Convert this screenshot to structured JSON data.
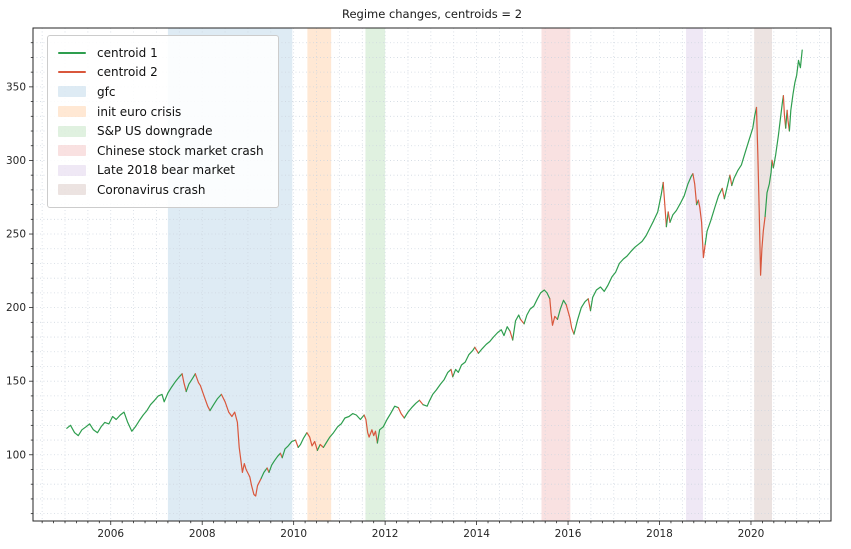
{
  "title": "Regime changes, centroids = 2",
  "chart_data": {
    "type": "line",
    "title": "Regime changes, centroids = 2",
    "xlabel": "",
    "ylabel": "",
    "xlim": [
      2004.3,
      2021.75
    ],
    "ylim": [
      55,
      390
    ],
    "xticks": [
      2006,
      2008,
      2010,
      2012,
      2014,
      2016,
      2018,
      2020
    ],
    "yticks": [
      100,
      150,
      200,
      250,
      300,
      350
    ],
    "x_minor_step": 0.25,
    "y_minor_step": 10,
    "grid": {
      "x_step": 0.5,
      "y_step": 10,
      "style": "dotted",
      "color": "#ccd4de"
    },
    "legend_position": "upper left",
    "series_meta": [
      {
        "name": "centroid 1",
        "regime": 1,
        "color": "#2e9e4e"
      },
      {
        "name": "centroid 2",
        "regime": 2,
        "color": "#d9573c"
      }
    ],
    "bands": [
      {
        "label": "gfc",
        "from": 2007.25,
        "to": 2009.97,
        "color": "rgba(31,119,180,0.15)"
      },
      {
        "label": "init euro crisis",
        "from": 2010.3,
        "to": 2010.82,
        "color": "rgba(255,127,14,0.18)"
      },
      {
        "label": "S&P US downgrade",
        "from": 2011.57,
        "to": 2012.0,
        "color": "rgba(44,160,44,0.15)"
      },
      {
        "label": "Chinese stock market crash",
        "from": 2015.42,
        "to": 2016.05,
        "color": "rgba(214,39,40,0.14)"
      },
      {
        "label": "Late 2018 bear market",
        "from": 2018.58,
        "to": 2018.95,
        "color": "rgba(148,103,189,0.15)"
      },
      {
        "label": "Coronavirus crash",
        "from": 2020.07,
        "to": 2020.46,
        "color": "rgba(140,86,75,0.17)"
      }
    ],
    "points": [
      [
        2005.04,
        118,
        1
      ],
      [
        2005.12,
        120,
        1
      ],
      [
        2005.21,
        115,
        1
      ],
      [
        2005.29,
        113,
        1
      ],
      [
        2005.37,
        117,
        1
      ],
      [
        2005.46,
        119,
        1
      ],
      [
        2005.54,
        121,
        1
      ],
      [
        2005.62,
        117,
        1
      ],
      [
        2005.71,
        115,
        1
      ],
      [
        2005.79,
        119,
        1
      ],
      [
        2005.87,
        122,
        1
      ],
      [
        2005.96,
        121,
        1
      ],
      [
        2006.04,
        126,
        1
      ],
      [
        2006.12,
        124,
        1
      ],
      [
        2006.21,
        127,
        1
      ],
      [
        2006.29,
        129,
        1
      ],
      [
        2006.37,
        122,
        1
      ],
      [
        2006.46,
        116,
        1
      ],
      [
        2006.54,
        119,
        1
      ],
      [
        2006.62,
        123,
        1
      ],
      [
        2006.71,
        127,
        1
      ],
      [
        2006.79,
        130,
        1
      ],
      [
        2006.87,
        134,
        1
      ],
      [
        2006.96,
        137,
        1
      ],
      [
        2007.04,
        140,
        1
      ],
      [
        2007.12,
        141,
        1
      ],
      [
        2007.17,
        136,
        1
      ],
      [
        2007.25,
        142,
        1
      ],
      [
        2007.33,
        146,
        1
      ],
      [
        2007.42,
        150,
        1
      ],
      [
        2007.5,
        153,
        1
      ],
      [
        2007.56,
        155,
        1
      ],
      [
        2007.6,
        149,
        2
      ],
      [
        2007.65,
        143,
        2
      ],
      [
        2007.71,
        148,
        1
      ],
      [
        2007.79,
        152,
        1
      ],
      [
        2007.85,
        155,
        1
      ],
      [
        2007.92,
        149,
        2
      ],
      [
        2007.96,
        147,
        2
      ],
      [
        2008.04,
        140,
        2
      ],
      [
        2008.12,
        133,
        2
      ],
      [
        2008.17,
        130,
        2
      ],
      [
        2008.25,
        134,
        1
      ],
      [
        2008.33,
        138,
        1
      ],
      [
        2008.42,
        141,
        1
      ],
      [
        2008.5,
        136,
        2
      ],
      [
        2008.58,
        129,
        2
      ],
      [
        2008.65,
        126,
        2
      ],
      [
        2008.71,
        129,
        2
      ],
      [
        2008.77,
        122,
        2
      ],
      [
        2008.81,
        105,
        2
      ],
      [
        2008.85,
        95,
        2
      ],
      [
        2008.88,
        88,
        2
      ],
      [
        2008.92,
        94,
        2
      ],
      [
        2008.96,
        90,
        2
      ],
      [
        2009.04,
        85,
        2
      ],
      [
        2009.08,
        79,
        2
      ],
      [
        2009.13,
        73,
        2
      ],
      [
        2009.17,
        72,
        2
      ],
      [
        2009.21,
        79,
        2
      ],
      [
        2009.29,
        84,
        2
      ],
      [
        2009.35,
        88,
        1
      ],
      [
        2009.42,
        91,
        1
      ],
      [
        2009.46,
        88,
        2
      ],
      [
        2009.52,
        93,
        1
      ],
      [
        2009.58,
        96,
        1
      ],
      [
        2009.65,
        99,
        1
      ],
      [
        2009.71,
        101,
        1
      ],
      [
        2009.75,
        98,
        2
      ],
      [
        2009.81,
        104,
        1
      ],
      [
        2009.88,
        106,
        1
      ],
      [
        2009.96,
        109,
        1
      ],
      [
        2010.04,
        110,
        1
      ],
      [
        2010.1,
        105,
        2
      ],
      [
        2010.15,
        107,
        1
      ],
      [
        2010.21,
        111,
        1
      ],
      [
        2010.29,
        115,
        1
      ],
      [
        2010.35,
        112,
        2
      ],
      [
        2010.4,
        106,
        2
      ],
      [
        2010.46,
        109,
        2
      ],
      [
        2010.52,
        103,
        2
      ],
      [
        2010.58,
        107,
        1
      ],
      [
        2010.65,
        105,
        2
      ],
      [
        2010.71,
        108,
        1
      ],
      [
        2010.79,
        112,
        1
      ],
      [
        2010.87,
        115,
        1
      ],
      [
        2010.96,
        119,
        1
      ],
      [
        2011.04,
        121,
        1
      ],
      [
        2011.12,
        125,
        1
      ],
      [
        2011.21,
        126,
        1
      ],
      [
        2011.29,
        128,
        1
      ],
      [
        2011.37,
        127,
        1
      ],
      [
        2011.46,
        124,
        1
      ],
      [
        2011.54,
        127,
        1
      ],
      [
        2011.58,
        124,
        2
      ],
      [
        2011.62,
        115,
        2
      ],
      [
        2011.65,
        112,
        2
      ],
      [
        2011.71,
        117,
        2
      ],
      [
        2011.75,
        113,
        2
      ],
      [
        2011.79,
        116,
        2
      ],
      [
        2011.83,
        108,
        2
      ],
      [
        2011.88,
        117,
        1
      ],
      [
        2011.96,
        119,
        1
      ],
      [
        2012.04,
        124,
        1
      ],
      [
        2012.12,
        128,
        1
      ],
      [
        2012.21,
        133,
        1
      ],
      [
        2012.29,
        132,
        1
      ],
      [
        2012.35,
        128,
        2
      ],
      [
        2012.42,
        125,
        2
      ],
      [
        2012.5,
        129,
        1
      ],
      [
        2012.58,
        132,
        1
      ],
      [
        2012.67,
        135,
        1
      ],
      [
        2012.75,
        137,
        1
      ],
      [
        2012.83,
        134,
        2
      ],
      [
        2012.92,
        133,
        1
      ],
      [
        2012.96,
        136,
        1
      ],
      [
        2013.04,
        141,
        1
      ],
      [
        2013.12,
        144,
        1
      ],
      [
        2013.21,
        148,
        1
      ],
      [
        2013.29,
        151,
        1
      ],
      [
        2013.37,
        156,
        1
      ],
      [
        2013.44,
        158,
        1
      ],
      [
        2013.48,
        153,
        2
      ],
      [
        2013.54,
        158,
        1
      ],
      [
        2013.6,
        156,
        1
      ],
      [
        2013.67,
        161,
        1
      ],
      [
        2013.75,
        163,
        1
      ],
      [
        2013.83,
        168,
        1
      ],
      [
        2013.92,
        171,
        1
      ],
      [
        2013.96,
        173,
        1
      ],
      [
        2014.04,
        169,
        2
      ],
      [
        2014.12,
        172,
        1
      ],
      [
        2014.21,
        175,
        1
      ],
      [
        2014.29,
        177,
        1
      ],
      [
        2014.37,
        180,
        1
      ],
      [
        2014.46,
        183,
        1
      ],
      [
        2014.54,
        185,
        1
      ],
      [
        2014.6,
        181,
        1
      ],
      [
        2014.67,
        187,
        1
      ],
      [
        2014.73,
        184,
        1
      ],
      [
        2014.79,
        178,
        2
      ],
      [
        2014.85,
        191,
        1
      ],
      [
        2014.92,
        195,
        1
      ],
      [
        2014.96,
        192,
        1
      ],
      [
        2015.04,
        189,
        2
      ],
      [
        2015.1,
        195,
        1
      ],
      [
        2015.17,
        199,
        1
      ],
      [
        2015.25,
        201,
        1
      ],
      [
        2015.33,
        206,
        1
      ],
      [
        2015.4,
        210,
        1
      ],
      [
        2015.48,
        212,
        1
      ],
      [
        2015.54,
        210,
        1
      ],
      [
        2015.6,
        206,
        1
      ],
      [
        2015.63,
        196,
        2
      ],
      [
        2015.66,
        188,
        2
      ],
      [
        2015.71,
        194,
        2
      ],
      [
        2015.77,
        192,
        2
      ],
      [
        2015.83,
        199,
        1
      ],
      [
        2015.9,
        205,
        1
      ],
      [
        2015.96,
        202,
        1
      ],
      [
        2016.04,
        193,
        2
      ],
      [
        2016.08,
        186,
        2
      ],
      [
        2016.13,
        182,
        2
      ],
      [
        2016.21,
        192,
        1
      ],
      [
        2016.29,
        200,
        1
      ],
      [
        2016.37,
        204,
        1
      ],
      [
        2016.44,
        206,
        1
      ],
      [
        2016.49,
        198,
        2
      ],
      [
        2016.54,
        207,
        1
      ],
      [
        2016.62,
        212,
        1
      ],
      [
        2016.71,
        214,
        1
      ],
      [
        2016.79,
        211,
        1
      ],
      [
        2016.87,
        215,
        1
      ],
      [
        2016.96,
        221,
        1
      ],
      [
        2017.04,
        224,
        1
      ],
      [
        2017.12,
        230,
        1
      ],
      [
        2017.21,
        233,
        1
      ],
      [
        2017.29,
        235,
        1
      ],
      [
        2017.37,
        238,
        1
      ],
      [
        2017.46,
        241,
        1
      ],
      [
        2017.54,
        243,
        1
      ],
      [
        2017.62,
        245,
        1
      ],
      [
        2017.71,
        249,
        1
      ],
      [
        2017.79,
        254,
        1
      ],
      [
        2017.87,
        259,
        1
      ],
      [
        2017.96,
        265,
        1
      ],
      [
        2018.04,
        277,
        1
      ],
      [
        2018.08,
        285,
        1
      ],
      [
        2018.12,
        268,
        2
      ],
      [
        2018.15,
        255,
        2
      ],
      [
        2018.19,
        265,
        1
      ],
      [
        2018.23,
        258,
        2
      ],
      [
        2018.29,
        263,
        1
      ],
      [
        2018.37,
        266,
        1
      ],
      [
        2018.46,
        271,
        1
      ],
      [
        2018.54,
        276,
        1
      ],
      [
        2018.62,
        284,
        1
      ],
      [
        2018.69,
        289,
        1
      ],
      [
        2018.73,
        291,
        1
      ],
      [
        2018.77,
        284,
        2
      ],
      [
        2018.81,
        270,
        2
      ],
      [
        2018.85,
        273,
        1
      ],
      [
        2018.88,
        268,
        2
      ],
      [
        2018.92,
        258,
        2
      ],
      [
        2018.96,
        234,
        2
      ],
      [
        2019.0,
        243,
        2
      ],
      [
        2019.04,
        252,
        1
      ],
      [
        2019.12,
        259,
        1
      ],
      [
        2019.21,
        268,
        1
      ],
      [
        2019.29,
        276,
        1
      ],
      [
        2019.37,
        281,
        1
      ],
      [
        2019.42,
        274,
        2
      ],
      [
        2019.48,
        282,
        1
      ],
      [
        2019.54,
        290,
        1
      ],
      [
        2019.58,
        283,
        2
      ],
      [
        2019.63,
        288,
        1
      ],
      [
        2019.71,
        293,
        1
      ],
      [
        2019.79,
        297,
        1
      ],
      [
        2019.87,
        305,
        1
      ],
      [
        2019.96,
        314,
        1
      ],
      [
        2020.04,
        322,
        1
      ],
      [
        2020.08,
        330,
        1
      ],
      [
        2020.12,
        336,
        1
      ],
      [
        2020.15,
        305,
        2
      ],
      [
        2020.18,
        266,
        2
      ],
      [
        2020.21,
        222,
        2
      ],
      [
        2020.24,
        240,
        2
      ],
      [
        2020.27,
        252,
        2
      ],
      [
        2020.31,
        262,
        2
      ],
      [
        2020.35,
        278,
        1
      ],
      [
        2020.4,
        284,
        1
      ],
      [
        2020.44,
        292,
        1
      ],
      [
        2020.46,
        300,
        1
      ],
      [
        2020.49,
        295,
        2
      ],
      [
        2020.54,
        304,
        1
      ],
      [
        2020.6,
        317,
        1
      ],
      [
        2020.65,
        330,
        1
      ],
      [
        2020.69,
        340,
        1
      ],
      [
        2020.71,
        344,
        1
      ],
      [
        2020.73,
        331,
        2
      ],
      [
        2020.76,
        322,
        2
      ],
      [
        2020.79,
        334,
        1
      ],
      [
        2020.81,
        327,
        2
      ],
      [
        2020.84,
        320,
        2
      ],
      [
        2020.87,
        334,
        1
      ],
      [
        2020.92,
        345,
        1
      ],
      [
        2020.96,
        353,
        1
      ],
      [
        2021.0,
        358,
        1
      ],
      [
        2021.04,
        368,
        1
      ],
      [
        2021.08,
        363,
        1
      ],
      [
        2021.12,
        375,
        1
      ]
    ]
  }
}
